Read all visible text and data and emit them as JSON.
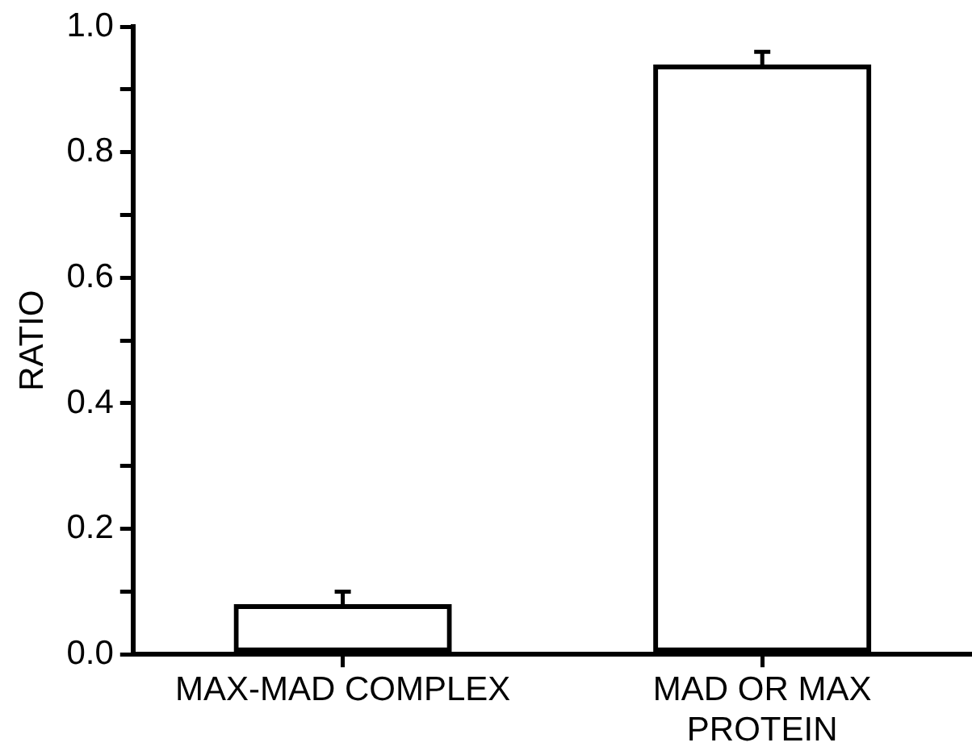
{
  "chart_data": {
    "type": "bar",
    "ylabel": "RATIO",
    "categories": [
      "MAX-MAD COMPLEX",
      "MAD OR MAX PROTEIN"
    ],
    "series": [
      {
        "color": "#000000",
        "values": [
          0.08,
          0.94
        ],
        "errors": [
          [
            0.08,
            0.1
          ],
          [
            0.94,
            0.96
          ]
        ]
      }
    ],
    "ylim": [
      0,
      1
    ],
    "yticks": [
      {
        "value": 0,
        "label": "0.0"
      },
      {
        "value": 0.1,
        "label": null
      },
      {
        "value": 0.2,
        "label": "0.2"
      },
      {
        "value": 0.3,
        "label": null
      },
      {
        "value": 0.4,
        "label": "0.4"
      },
      {
        "value": 0.5,
        "label": null
      },
      {
        "value": 0.6,
        "label": "0.6"
      },
      {
        "value": 0.7,
        "label": null
      },
      {
        "value": 0.8,
        "label": "0.8"
      },
      {
        "value": 0.9,
        "label": null
      },
      {
        "value": 1,
        "label": "1.0"
      }
    ],
    "grid": false,
    "legend": false
  }
}
